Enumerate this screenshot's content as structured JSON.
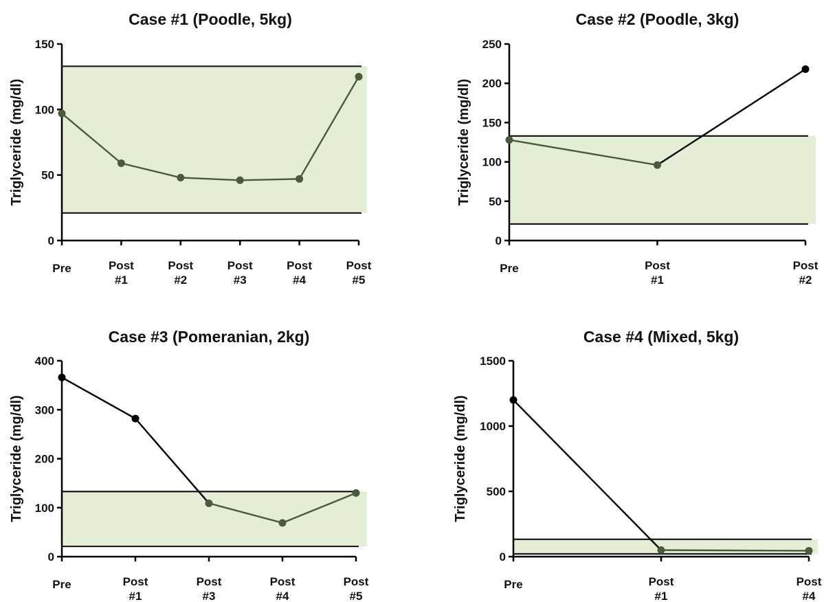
{
  "colors": {
    "band_fill": "#e4edd6",
    "band_line": "#1a1a1a",
    "in_range": "#4a5a3c",
    "out_of_range": "#000000",
    "axis": "#000000"
  },
  "chart_data": [
    {
      "type": "line",
      "title": "Case #1 (Poodle, 5kg)",
      "ylabel": "Triglyceride (mg/dl)",
      "xlabel": "",
      "categories": [
        "Pre",
        "Post\n#1",
        "Post\n#2",
        "Post\n#3",
        "Post\n#4",
        "Post\n#5"
      ],
      "values": [
        97,
        59,
        48,
        46,
        47,
        125
      ],
      "ylim": [
        0,
        150
      ],
      "yticks": [
        0,
        50,
        100,
        150
      ],
      "reference_range": [
        21,
        133
      ],
      "grid": false
    },
    {
      "type": "line",
      "title": "Case #2 (Poodle, 3kg)",
      "ylabel": "Triglyceride (mg/dl)",
      "xlabel": "",
      "categories": [
        "Pre",
        "Post\n#1",
        "Post\n#2"
      ],
      "values": [
        128,
        96,
        218
      ],
      "ylim": [
        0,
        250
      ],
      "yticks": [
        0,
        50,
        100,
        150,
        200,
        250
      ],
      "reference_range": [
        21,
        133
      ],
      "grid": false
    },
    {
      "type": "line",
      "title": "Case #3 (Pomeranian, 2kg)",
      "ylabel": "Triglyceride (mg/dl)",
      "xlabel": "",
      "categories": [
        "Pre",
        "Post\n#1",
        "Post\n#3",
        "Post\n#4",
        "Post\n#5"
      ],
      "values": [
        366,
        282,
        109,
        69,
        130
      ],
      "ylim": [
        0,
        400
      ],
      "yticks": [
        0,
        100,
        200,
        300,
        400
      ],
      "reference_range": [
        21,
        133
      ],
      "grid": false
    },
    {
      "type": "line",
      "title": "Case #4  (Mixed, 5kg)",
      "ylabel": "Triglyceride (mg/dl)",
      "xlabel": "",
      "categories": [
        "Pre",
        "Post\n#1",
        "Post\n#4"
      ],
      "values": [
        1200,
        50,
        45
      ],
      "ylim": [
        0,
        1500
      ],
      "yticks": [
        0,
        500,
        1000,
        1500
      ],
      "reference_range": [
        21,
        133
      ],
      "grid": false
    }
  ]
}
